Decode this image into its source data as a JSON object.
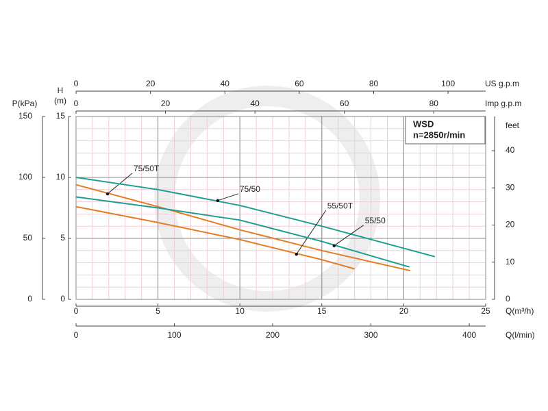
{
  "chart_data": {
    "type": "line",
    "x_label": "Q(m³/h)",
    "y_label": "H",
    "y_unit": "(m)",
    "xlim": [
      0,
      25
    ],
    "xticks": [
      0,
      5,
      10,
      15,
      20,
      25
    ],
    "ylim": [
      0,
      15
    ],
    "yticks": [
      0,
      5,
      10,
      15
    ],
    "grid": true,
    "minor_grid": true,
    "p_axis": {
      "label": "P(kPa)",
      "lim": [
        0,
        150
      ],
      "ticks": [
        0,
        50,
        100,
        150
      ]
    },
    "feet_axis": {
      "label": "feet",
      "lim": [
        0,
        49.2
      ],
      "ticks": [
        0,
        10,
        20,
        30,
        40
      ]
    },
    "usgpm_axis": {
      "label": "US g.p.m",
      "lim": [
        0,
        110.1
      ],
      "ticks": [
        0,
        20,
        40,
        60,
        80,
        100
      ]
    },
    "impgpm_axis": {
      "label": "Imp g.p.m",
      "lim": [
        0,
        91.6
      ],
      "ticks": [
        0,
        20,
        40,
        60,
        80
      ]
    },
    "lmin_axis": {
      "label": "Q(l/min)",
      "lim": [
        0,
        416.7
      ],
      "ticks": [
        0,
        100,
        200,
        300,
        400
      ]
    },
    "info_box": {
      "title": "WSD",
      "speed": "n=2850r/min"
    },
    "series": [
      {
        "name": "75/50T",
        "color": "#e47d25",
        "x": [
          0,
          5,
          10,
          15,
          20.4
        ],
        "values": [
          9.4,
          7.6,
          5.7,
          4.0,
          2.35
        ],
        "marker_x": 1.92,
        "marker_value": 8.65
      },
      {
        "name": "75/50",
        "color": "#1c9e92",
        "x": [
          0,
          5,
          10,
          15,
          21.9
        ],
        "values": [
          10,
          9.0,
          7.7,
          6.0,
          3.5
        ],
        "marker_x": 8.65,
        "marker_value": 8.1
      },
      {
        "name": "55/50T",
        "color": "#e47d25",
        "x": [
          0,
          5,
          10,
          15,
          17
        ],
        "values": [
          7.6,
          6.3,
          4.9,
          3.25,
          2.5
        ],
        "marker_x": 13.45,
        "marker_value": 3.7
      },
      {
        "name": "55/50",
        "color": "#1c9e92",
        "x": [
          0,
          5,
          10,
          15,
          20.35
        ],
        "values": [
          8.4,
          7.5,
          6.5,
          4.75,
          2.65
        ],
        "marker_x": 15.75,
        "marker_value": 4.4
      }
    ]
  }
}
